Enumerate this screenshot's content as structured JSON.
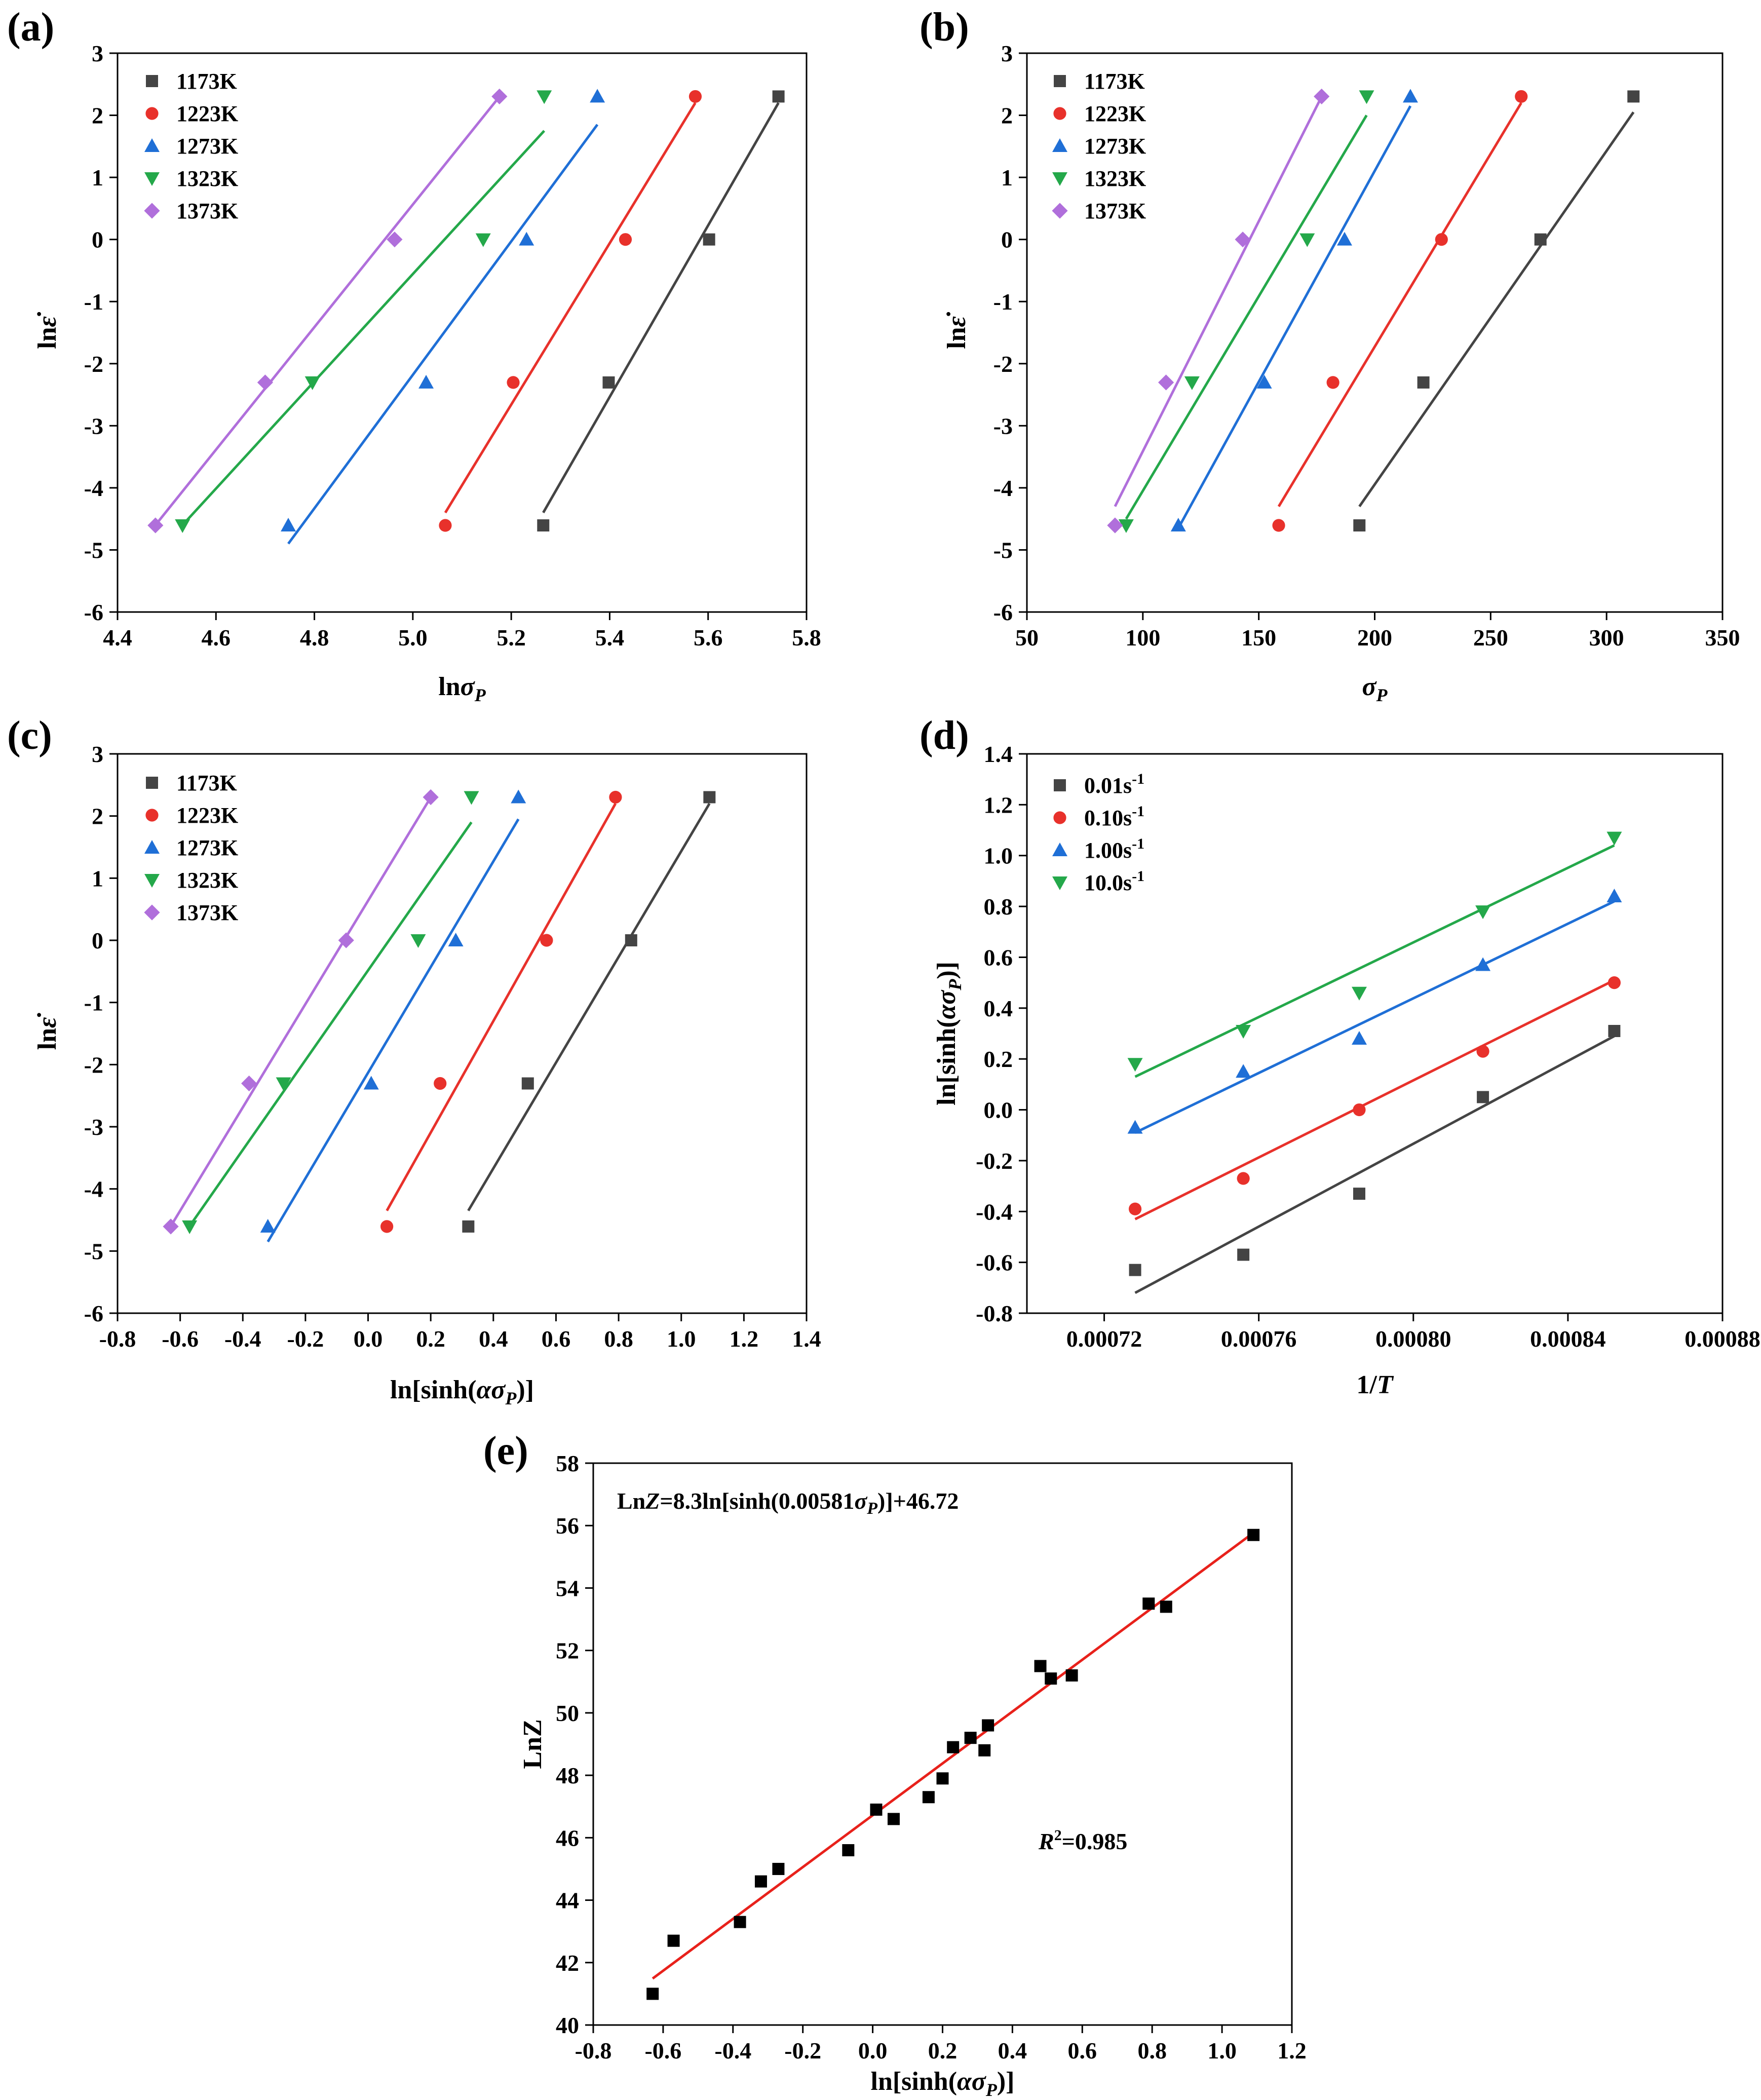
{
  "chart_data": [
    {
      "id": "a",
      "panel_label": "(a)",
      "type": "scatter",
      "xlabel_html": "ln<tspan font-style='italic'>σ</tspan><tspan font-style='italic' font-size='36' dy='12'>P</tspan>",
      "ylabel_html": "ln<tspan font-style='italic'>ε̇</tspan>",
      "xlim": [
        4.4,
        5.8
      ],
      "ylim": [
        -6,
        3
      ],
      "xticks": [
        4.4,
        4.6,
        4.8,
        5.0,
        5.2,
        5.4,
        5.6,
        5.8
      ],
      "xtick_labels": [
        "4.4",
        "4.6",
        "4.8",
        "5.0",
        "5.2",
        "5.4",
        "5.6",
        "5.8"
      ],
      "yticks": [
        -6,
        -5,
        -4,
        -3,
        -2,
        -1,
        0,
        1,
        2,
        3
      ],
      "ytick_labels": [
        "-6",
        "-5",
        "-4",
        "-3",
        "-2",
        "-1",
        "0",
        "1",
        "2",
        "3"
      ],
      "legend_position": "top-left",
      "series": [
        {
          "name": "1173K",
          "color": "#444444",
          "marker": "square",
          "x": [
            5.265,
            5.398,
            5.602,
            5.743
          ],
          "y": [
            -4.605,
            -2.303,
            0,
            2.303
          ],
          "fit": [
            [
              5.265,
              -4.4
            ],
            [
              5.743,
              2.2
            ]
          ]
        },
        {
          "name": "1223K",
          "color": "#e8312b",
          "marker": "circle",
          "x": [
            5.066,
            5.204,
            5.432,
            5.574
          ],
          "y": [
            -4.605,
            -2.303,
            0,
            2.303
          ],
          "fit": [
            [
              5.066,
              -4.4
            ],
            [
              5.574,
              2.2
            ]
          ]
        },
        {
          "name": "1273K",
          "color": "#1f6fd6",
          "marker": "triangle-up",
          "x": [
            4.747,
            5.027,
            5.231,
            5.375
          ],
          "y": [
            -4.605,
            -2.303,
            0,
            2.303
          ],
          "fit": [
            [
              4.747,
              -4.9
            ],
            [
              5.375,
              1.85
            ]
          ]
        },
        {
          "name": "1323K",
          "color": "#24a84a",
          "marker": "triangle-down",
          "x": [
            4.532,
            4.796,
            5.143,
            5.267
          ],
          "y": [
            -4.605,
            -2.303,
            0,
            2.303
          ],
          "fit": [
            [
              4.532,
              -4.6
            ],
            [
              5.267,
              1.75
            ]
          ]
        },
        {
          "name": "1373K",
          "color": "#b06fdb",
          "marker": "diamond",
          "x": [
            4.477,
            4.7,
            4.963,
            5.176
          ],
          "y": [
            -4.605,
            -2.303,
            0,
            2.303
          ],
          "fit": [
            [
              4.477,
              -4.6
            ],
            [
              5.176,
              2.3
            ]
          ]
        }
      ]
    },
    {
      "id": "b",
      "panel_label": "(b)",
      "type": "scatter",
      "xlabel_html": "<tspan font-style='italic'>σ</tspan><tspan font-style='italic' font-size='36' dy='12'>P</tspan>",
      "ylabel_html": "ln<tspan font-style='italic'>ε̇</tspan>",
      "xlim": [
        50,
        350
      ],
      "ylim": [
        -6,
        3
      ],
      "xticks": [
        50,
        100,
        150,
        200,
        250,
        300,
        350
      ],
      "xtick_labels": [
        "50",
        "100",
        "150",
        "200",
        "250",
        "300",
        "350"
      ],
      "yticks": [
        -6,
        -5,
        -4,
        -3,
        -2,
        -1,
        0,
        1,
        2,
        3
      ],
      "ytick_labels": [
        "-6",
        "-5",
        "-4",
        "-3",
        "-2",
        "-1",
        "0",
        "1",
        "2",
        "3"
      ],
      "legend_position": "top-left",
      "series": [
        {
          "name": "1173K",
          "color": "#444444",
          "marker": "square",
          "x": [
            193.4,
            221.0,
            271.5,
            311.6
          ],
          "y": [
            -4.605,
            -2.303,
            0,
            2.303
          ],
          "fit": [
            [
              193.4,
              -4.3
            ],
            [
              311.6,
              2.05
            ]
          ]
        },
        {
          "name": "1223K",
          "color": "#e8312b",
          "marker": "circle",
          "x": [
            158.6,
            182.0,
            228.8,
            263.2
          ],
          "y": [
            -4.605,
            -2.303,
            0,
            2.303
          ],
          "fit": [
            [
              158.6,
              -4.3
            ],
            [
              263.2,
              2.2
            ]
          ]
        },
        {
          "name": "1273K",
          "color": "#1f6fd6",
          "marker": "triangle-up",
          "x": [
            115.3,
            152.4,
            187.0,
            215.4
          ],
          "y": [
            -4.605,
            -2.303,
            0,
            2.303
          ],
          "fit": [
            [
              115.3,
              -4.65
            ],
            [
              215.4,
              2.15
            ]
          ]
        },
        {
          "name": "1323K",
          "color": "#24a84a",
          "marker": "triangle-down",
          "x": [
            92.8,
            121.2,
            170.9,
            196.5
          ],
          "y": [
            -4.605,
            -2.303,
            0,
            2.303
          ],
          "fit": [
            [
              92.8,
              -4.5
            ],
            [
              196.5,
              2.0
            ]
          ]
        },
        {
          "name": "1373K",
          "color": "#b06fdb",
          "marker": "diamond",
          "x": [
            88.0,
            110.0,
            143.1,
            177.1
          ],
          "y": [
            -4.605,
            -2.303,
            0,
            2.303
          ],
          "fit": [
            [
              88.0,
              -4.3
            ],
            [
              177.1,
              2.3
            ]
          ]
        }
      ]
    },
    {
      "id": "c",
      "panel_label": "(c)",
      "type": "scatter",
      "xlabel_html": "ln[sinh(<tspan font-style='italic'>ασ</tspan><tspan font-style='italic' font-size='36' dy='12'>P</tspan><tspan dy='-12'>)]</tspan>",
      "ylabel_html": "ln<tspan font-style='italic'>ε̇</tspan>",
      "xlim": [
        -0.8,
        1.4
      ],
      "ylim": [
        -6,
        3
      ],
      "xticks": [
        -0.8,
        -0.6,
        -0.4,
        -0.2,
        0.0,
        0.2,
        0.4,
        0.6,
        0.8,
        1.0,
        1.2,
        1.4
      ],
      "xtick_labels": [
        "-0.8",
        "-0.6",
        "-0.4",
        "-0.2",
        "0.0",
        "0.2",
        "0.4",
        "0.6",
        "0.8",
        "1.0",
        "1.2",
        "1.4"
      ],
      "yticks": [
        -6,
        -5,
        -4,
        -3,
        -2,
        -1,
        0,
        1,
        2,
        3
      ],
      "ytick_labels": [
        "-6",
        "-5",
        "-4",
        "-3",
        "-2",
        "-1",
        "0",
        "1",
        "2",
        "3"
      ],
      "legend_position": "top-left",
      "series": [
        {
          "name": "1173K",
          "color": "#444444",
          "marker": "square",
          "x": [
            0.32,
            0.51,
            0.84,
            1.09
          ],
          "y": [
            -4.605,
            -2.303,
            0,
            2.303
          ],
          "fit": [
            [
              0.32,
              -4.35
            ],
            [
              1.09,
              2.2
            ]
          ]
        },
        {
          "name": "1223K",
          "color": "#e8312b",
          "marker": "circle",
          "x": [
            0.06,
            0.23,
            0.57,
            0.79
          ],
          "y": [
            -4.605,
            -2.303,
            0,
            2.303
          ],
          "fit": [
            [
              0.06,
              -4.35
            ],
            [
              0.79,
              2.2
            ]
          ]
        },
        {
          "name": "1273K",
          "color": "#1f6fd6",
          "marker": "triangle-up",
          "x": [
            -0.32,
            0.01,
            0.28,
            0.48
          ],
          "y": [
            -4.605,
            -2.303,
            0,
            2.303
          ],
          "fit": [
            [
              -0.32,
              -4.85
            ],
            [
              0.48,
              1.95
            ]
          ]
        },
        {
          "name": "1323K",
          "color": "#24a84a",
          "marker": "triangle-down",
          "x": [
            -0.57,
            -0.27,
            0.16,
            0.33
          ],
          "y": [
            -4.605,
            -2.303,
            0,
            2.303
          ],
          "fit": [
            [
              -0.57,
              -4.6
            ],
            [
              0.33,
              1.9
            ]
          ]
        },
        {
          "name": "1373K",
          "color": "#b06fdb",
          "marker": "diamond",
          "x": [
            -0.63,
            -0.38,
            -0.07,
            0.2
          ],
          "y": [
            -4.605,
            -2.303,
            0,
            2.303
          ],
          "fit": [
            [
              -0.63,
              -4.6
            ],
            [
              0.2,
              2.3
            ]
          ]
        }
      ]
    },
    {
      "id": "d",
      "panel_label": "(d)",
      "type": "scatter",
      "xlabel_html": "1/<tspan font-style='italic'>T</tspan>",
      "ylabel_html": "ln[sinh(<tspan font-style='italic'>ασ</tspan><tspan font-style='italic' font-size='36' dy='12'>P</tspan><tspan dy='-12'>)]</tspan>",
      "xlim": [
        0.0007,
        0.00088
      ],
      "ylim": [
        -0.8,
        1.4
      ],
      "xticks": [
        0.00072,
        0.00076,
        0.0008,
        0.00084,
        0.00088
      ],
      "xtick_labels": [
        "0.00072",
        "0.00076",
        "0.00080",
        "0.00084",
        "0.00088"
      ],
      "yticks": [
        -0.8,
        -0.6,
        -0.4,
        -0.2,
        0.0,
        0.2,
        0.4,
        0.6,
        0.8,
        1.0,
        1.2,
        1.4
      ],
      "ytick_labels": [
        "-0.8",
        "-0.6",
        "-0.4",
        "-0.2",
        "0.0",
        "0.2",
        "0.4",
        "0.6",
        "0.8",
        "1.0",
        "1.2",
        "1.4"
      ],
      "legend_position": "top-left",
      "series": [
        {
          "name": "0.01s",
          "name_sup": "-1",
          "color": "#444444",
          "marker": "square",
          "x": [
            0.000728,
            0.000756,
            0.000786,
            0.000818,
            0.000852
          ],
          "y": [
            -0.63,
            -0.57,
            -0.33,
            0.05,
            0.31
          ],
          "fit": [
            [
              0.000728,
              -0.72
            ],
            [
              0.000852,
              0.29
            ]
          ]
        },
        {
          "name": "0.10s",
          "name_sup": "-1",
          "color": "#e8312b",
          "marker": "circle",
          "x": [
            0.000728,
            0.000756,
            0.000786,
            0.000818,
            0.000852
          ],
          "y": [
            -0.39,
            -0.27,
            0.0,
            0.23,
            0.5
          ],
          "fit": [
            [
              0.000728,
              -0.43
            ],
            [
              0.000852,
              0.51
            ]
          ]
        },
        {
          "name": "1.00s",
          "name_sup": "-1",
          "color": "#1f6fd6",
          "marker": "triangle-up",
          "x": [
            0.000728,
            0.000756,
            0.000786,
            0.000818,
            0.000852
          ],
          "y": [
            -0.07,
            0.15,
            0.28,
            0.57,
            0.84
          ],
          "fit": [
            [
              0.000728,
              -0.09
            ],
            [
              0.000852,
              0.82
            ]
          ]
        },
        {
          "name": "10.0s",
          "name_sup": "-1",
          "color": "#24a84a",
          "marker": "triangle-down",
          "x": [
            0.000728,
            0.000756,
            0.000786,
            0.000818,
            0.000852
          ],
          "y": [
            0.18,
            0.31,
            0.46,
            0.78,
            1.07
          ],
          "fit": [
            [
              0.000728,
              0.13
            ],
            [
              0.000852,
              1.04
            ]
          ]
        }
      ]
    },
    {
      "id": "e",
      "panel_label": "(e)",
      "type": "scatter",
      "xlabel_html": "ln[sinh(<tspan font-style='italic'>ασ</tspan><tspan font-style='italic' font-size='36' dy='12'>P</tspan><tspan dy='-12'>)]</tspan>",
      "ylabel_html": "LnZ",
      "xlim": [
        -0.8,
        1.2
      ],
      "ylim": [
        40,
        58
      ],
      "xticks": [
        -0.8,
        -0.6,
        -0.4,
        -0.2,
        0.0,
        0.2,
        0.4,
        0.6,
        0.8,
        1.0,
        1.2
      ],
      "xtick_labels": [
        "-0.8",
        "-0.6",
        "-0.4",
        "-0.2",
        "0.0",
        "0.2",
        "0.4",
        "0.6",
        "0.8",
        "1.0",
        "1.2"
      ],
      "yticks": [
        40,
        42,
        44,
        46,
        48,
        50,
        52,
        54,
        56,
        58
      ],
      "ytick_labels": [
        "40",
        "42",
        "44",
        "46",
        "48",
        "50",
        "52",
        "54",
        "56",
        "58"
      ],
      "equation_html": "Ln<tspan font-style='italic'>Z</tspan>=8.3ln[sinh(0.00581<tspan font-style='italic'>σ</tspan><tspan font-style='italic' font-size='34' dy='10'>P</tspan><tspan dy='-10'>)]+46.72</tspan>",
      "r2_html": "<tspan font-style='italic'>R</tspan><tspan font-size='30' dy='-18'>2</tspan><tspan dy='18'>=0.985</tspan>",
      "series": [
        {
          "name": "",
          "color": "#000000",
          "marker": "square",
          "x": [
            -0.63,
            -0.57,
            -0.38,
            -0.32,
            -0.27,
            -0.07,
            0.01,
            0.06,
            0.16,
            0.2,
            0.23,
            0.28,
            0.32,
            0.33,
            0.48,
            0.51,
            0.57,
            0.79,
            0.84,
            1.09
          ],
          "y": [
            41.0,
            42.7,
            43.3,
            44.6,
            45.0,
            45.6,
            46.9,
            46.6,
            47.3,
            47.9,
            48.9,
            49.2,
            48.8,
            49.6,
            51.5,
            51.1,
            51.2,
            53.5,
            53.4,
            55.7
          ],
          "fit": [
            [
              -0.63,
              41.49
            ],
            [
              1.09,
              55.77
            ]
          ],
          "fit_color": "#e8211b"
        }
      ]
    }
  ]
}
